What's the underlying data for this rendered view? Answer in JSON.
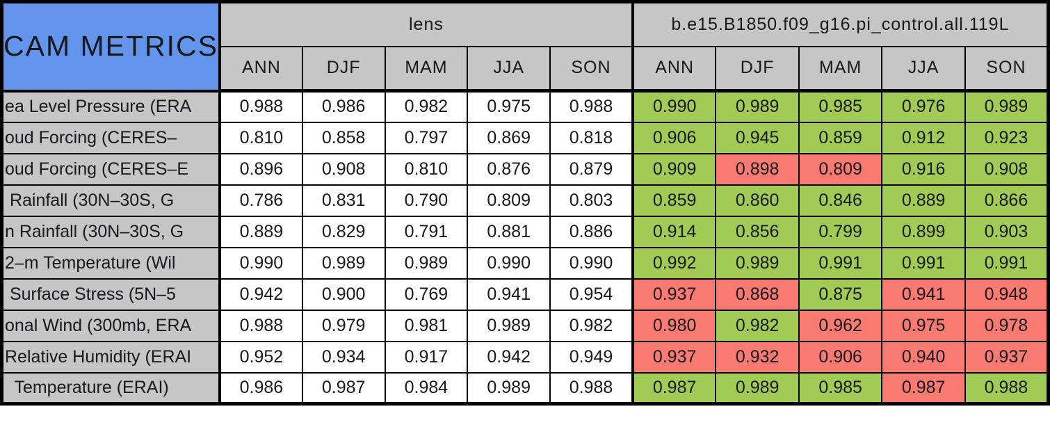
{
  "chart_data": {
    "type": "table",
    "title": "CAM METRICS",
    "column_groups": [
      {
        "label": "lens",
        "seasons": [
          "ANN",
          "DJF",
          "MAM",
          "JJA",
          "SON"
        ]
      },
      {
        "label": "b.e15.B1850.f09_g16.pi_control.all.119L",
        "seasons": [
          "ANN",
          "DJF",
          "MAM",
          "JJA",
          "SON"
        ]
      }
    ],
    "rows": [
      {
        "label": "ea Level Pressure (ERA",
        "lens": [
          "0.988",
          "0.986",
          "0.982",
          "0.975",
          "0.988"
        ],
        "case": [
          "0.990",
          "0.989",
          "0.985",
          "0.976",
          "0.989"
        ],
        "case_status": [
          "good",
          "good",
          "good",
          "good",
          "good"
        ]
      },
      {
        "label": "oud Forcing (CERES–",
        "lens": [
          "0.810",
          "0.858",
          "0.797",
          "0.869",
          "0.818"
        ],
        "case": [
          "0.906",
          "0.945",
          "0.859",
          "0.912",
          "0.923"
        ],
        "case_status": [
          "good",
          "good",
          "good",
          "good",
          "good"
        ]
      },
      {
        "label": "oud Forcing (CERES–E",
        "lens": [
          "0.896",
          "0.908",
          "0.810",
          "0.876",
          "0.879"
        ],
        "case": [
          "0.909",
          "0.898",
          "0.809",
          "0.916",
          "0.908"
        ],
        "case_status": [
          "good",
          "bad",
          "bad",
          "good",
          "good"
        ]
      },
      {
        "label": " Rainfall (30N–30S, G",
        "lens": [
          "0.786",
          "0.831",
          "0.790",
          "0.809",
          "0.803"
        ],
        "case": [
          "0.859",
          "0.860",
          "0.846",
          "0.889",
          "0.866"
        ],
        "case_status": [
          "good",
          "good",
          "good",
          "good",
          "good"
        ]
      },
      {
        "label": "n Rainfall (30N–30S, G",
        "lens": [
          "0.889",
          "0.829",
          "0.791",
          "0.881",
          "0.886"
        ],
        "case": [
          "0.914",
          "0.856",
          "0.799",
          "0.899",
          "0.903"
        ],
        "case_status": [
          "good",
          "good",
          "good",
          "good",
          "good"
        ]
      },
      {
        "label": "2–m Temperature (Wil",
        "lens": [
          "0.990",
          "0.989",
          "0.989",
          "0.990",
          "0.990"
        ],
        "case": [
          "0.992",
          "0.989",
          "0.991",
          "0.991",
          "0.991"
        ],
        "case_status": [
          "good",
          "good",
          "good",
          "good",
          "good"
        ]
      },
      {
        "label": " Surface Stress (5N–5",
        "lens": [
          "0.942",
          "0.900",
          "0.769",
          "0.941",
          "0.954"
        ],
        "case": [
          "0.937",
          "0.868",
          "0.875",
          "0.941",
          "0.948"
        ],
        "case_status": [
          "bad",
          "bad",
          "good",
          "bad",
          "bad"
        ]
      },
      {
        "label": "onal Wind (300mb, ERA",
        "lens": [
          "0.988",
          "0.979",
          "0.981",
          "0.989",
          "0.982"
        ],
        "case": [
          "0.980",
          "0.982",
          "0.962",
          "0.975",
          "0.978"
        ],
        "case_status": [
          "bad",
          "good",
          "bad",
          "bad",
          "bad"
        ]
      },
      {
        "label": "Relative Humidity (ERAI",
        "lens": [
          "0.952",
          "0.934",
          "0.917",
          "0.942",
          "0.949"
        ],
        "case": [
          "0.937",
          "0.932",
          "0.906",
          "0.940",
          "0.937"
        ],
        "case_status": [
          "bad",
          "bad",
          "bad",
          "bad",
          "bad"
        ]
      },
      {
        "label": "  Temperature (ERAI)",
        "lens": [
          "0.986",
          "0.987",
          "0.984",
          "0.989",
          "0.988"
        ],
        "case": [
          "0.987",
          "0.989",
          "0.985",
          "0.987",
          "0.988"
        ],
        "case_status": [
          "good",
          "good",
          "good",
          "bad",
          "good"
        ]
      }
    ],
    "colors": {
      "title_bg": "#6495ED",
      "header_bg": "#C6C6C6",
      "label_bg": "#C6C6C6",
      "lens_cell_bg": "#FFFFFF",
      "good": "#A1CB55",
      "bad": "#F97A70",
      "border": "#000000"
    },
    "layout": {
      "label_col_width": 303,
      "value_col_width": 120,
      "header_row_height": 64,
      "data_row_height": 45
    }
  }
}
